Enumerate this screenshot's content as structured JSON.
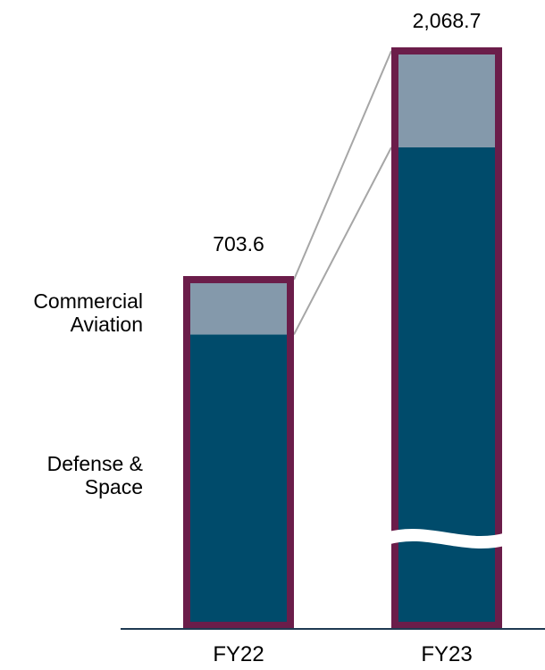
{
  "colors": {
    "defense_space": "#004b6b",
    "commercial_aviation": "#8499ab",
    "bar_outline": "#6b1d4a",
    "connector": "#a6a6a6",
    "baseline": "#1f3a52"
  },
  "chart_data": {
    "type": "bar",
    "stacked": true,
    "categories": [
      "FY22",
      "FY23"
    ],
    "totals": [
      "703.6",
      "2,068.7"
    ],
    "series": [
      {
        "name": "Defense & Space",
        "values": [
          592,
          1870
        ]
      },
      {
        "name": "Commercial Aviation",
        "values": [
          111.6,
          198.7
        ]
      }
    ],
    "segment_labels": [
      [
        "Defense &",
        "Space"
      ],
      [
        "Commercial",
        "Aviation"
      ]
    ],
    "axis_break_on": "FY23",
    "legend": "left",
    "grid": false
  }
}
